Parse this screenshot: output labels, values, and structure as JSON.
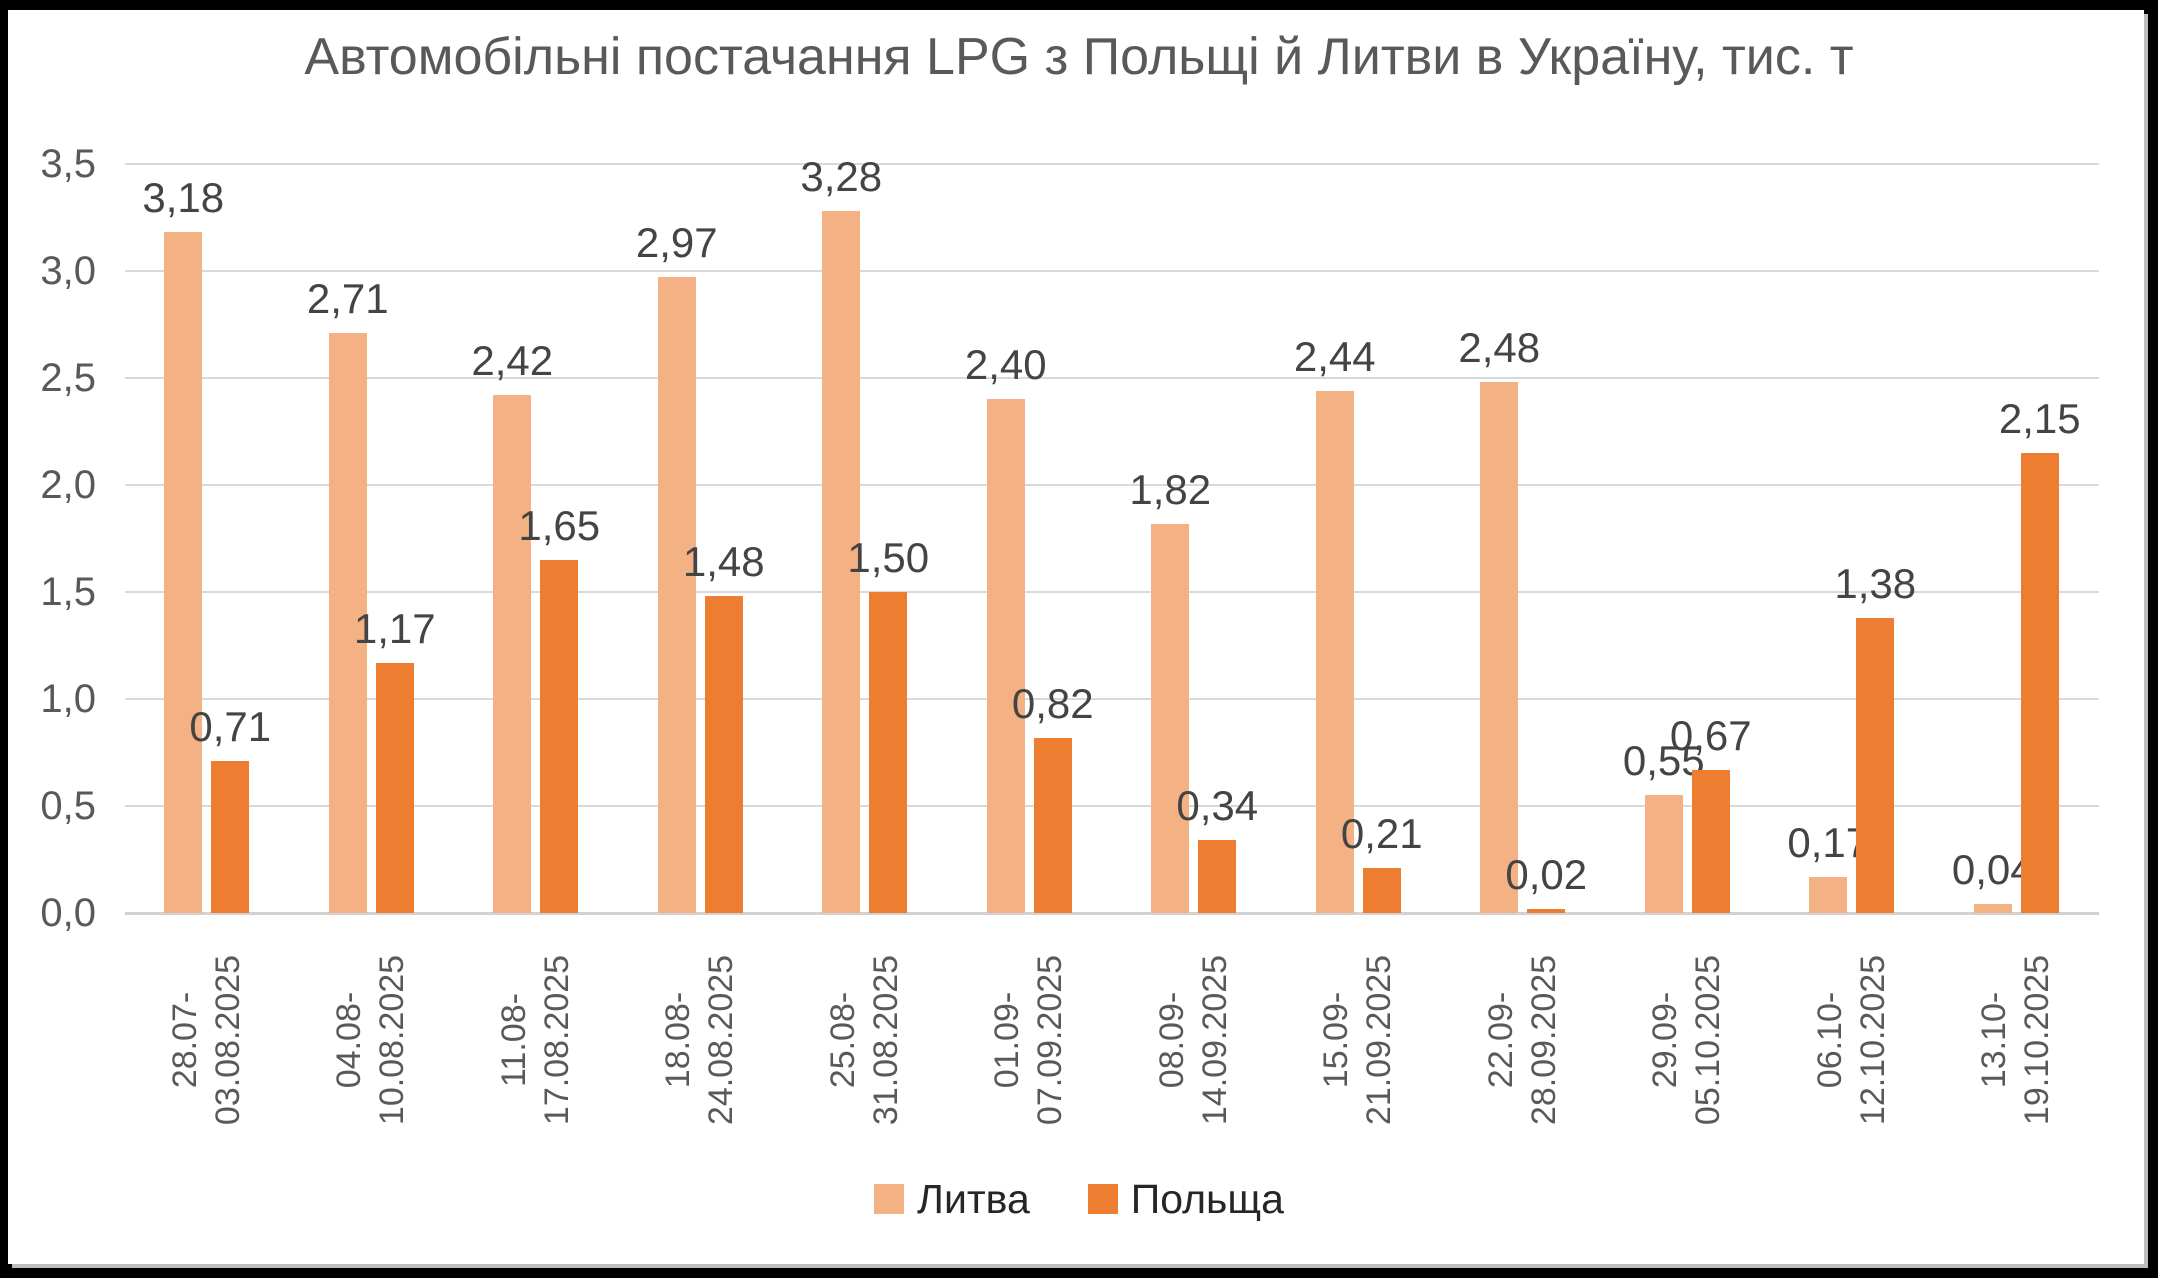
{
  "chart_data": {
    "type": "bar",
    "title": "Автомобільні постачання LPG з Польщі й Литви в Україну, тис. т",
    "categories": [
      "28.07-\n03.08.2025",
      "04.08-\n10.08.2025",
      "11.08-\n17.08.2025",
      "18.08-\n24.08.2025",
      "25.08-\n31.08.2025",
      "01.09-\n07.09.2025",
      "08.09-\n14.09.2025",
      "15.09-\n21.09.2025",
      "22.09-\n28.09.2025",
      "29.09-\n05.10.2025",
      "06.10-\n12.10.2025",
      "13.10-\n19.10.2025"
    ],
    "series": [
      {
        "name": "Литва",
        "color": "#F4B183",
        "values": [
          3.18,
          2.71,
          2.42,
          2.97,
          3.28,
          2.4,
          1.82,
          2.44,
          2.48,
          0.55,
          0.17,
          0.04
        ]
      },
      {
        "name": "Польща",
        "color": "#ED7D31",
        "values": [
          0.71,
          1.17,
          1.65,
          1.48,
          1.5,
          0.82,
          0.34,
          0.21,
          0.02,
          0.67,
          1.38,
          2.15
        ]
      }
    ],
    "ylim": [
      0,
      3.5
    ],
    "y_step": 0.5,
    "grid": true,
    "legend_position": "bottom",
    "decimal_separator": ",",
    "value_label_decimals": 2,
    "tick_label_decimals": 1
  },
  "style": {
    "title_color": "#595959",
    "tick_color": "#595959",
    "xlabel_color": "#595959",
    "value_label_color": "#444444",
    "legend_text_color": "#262626",
    "grid_color": "#d9d9d9",
    "baseline_color": "#d2d2d2",
    "panel_background": "#ffffff",
    "frame_background": "#000000"
  }
}
